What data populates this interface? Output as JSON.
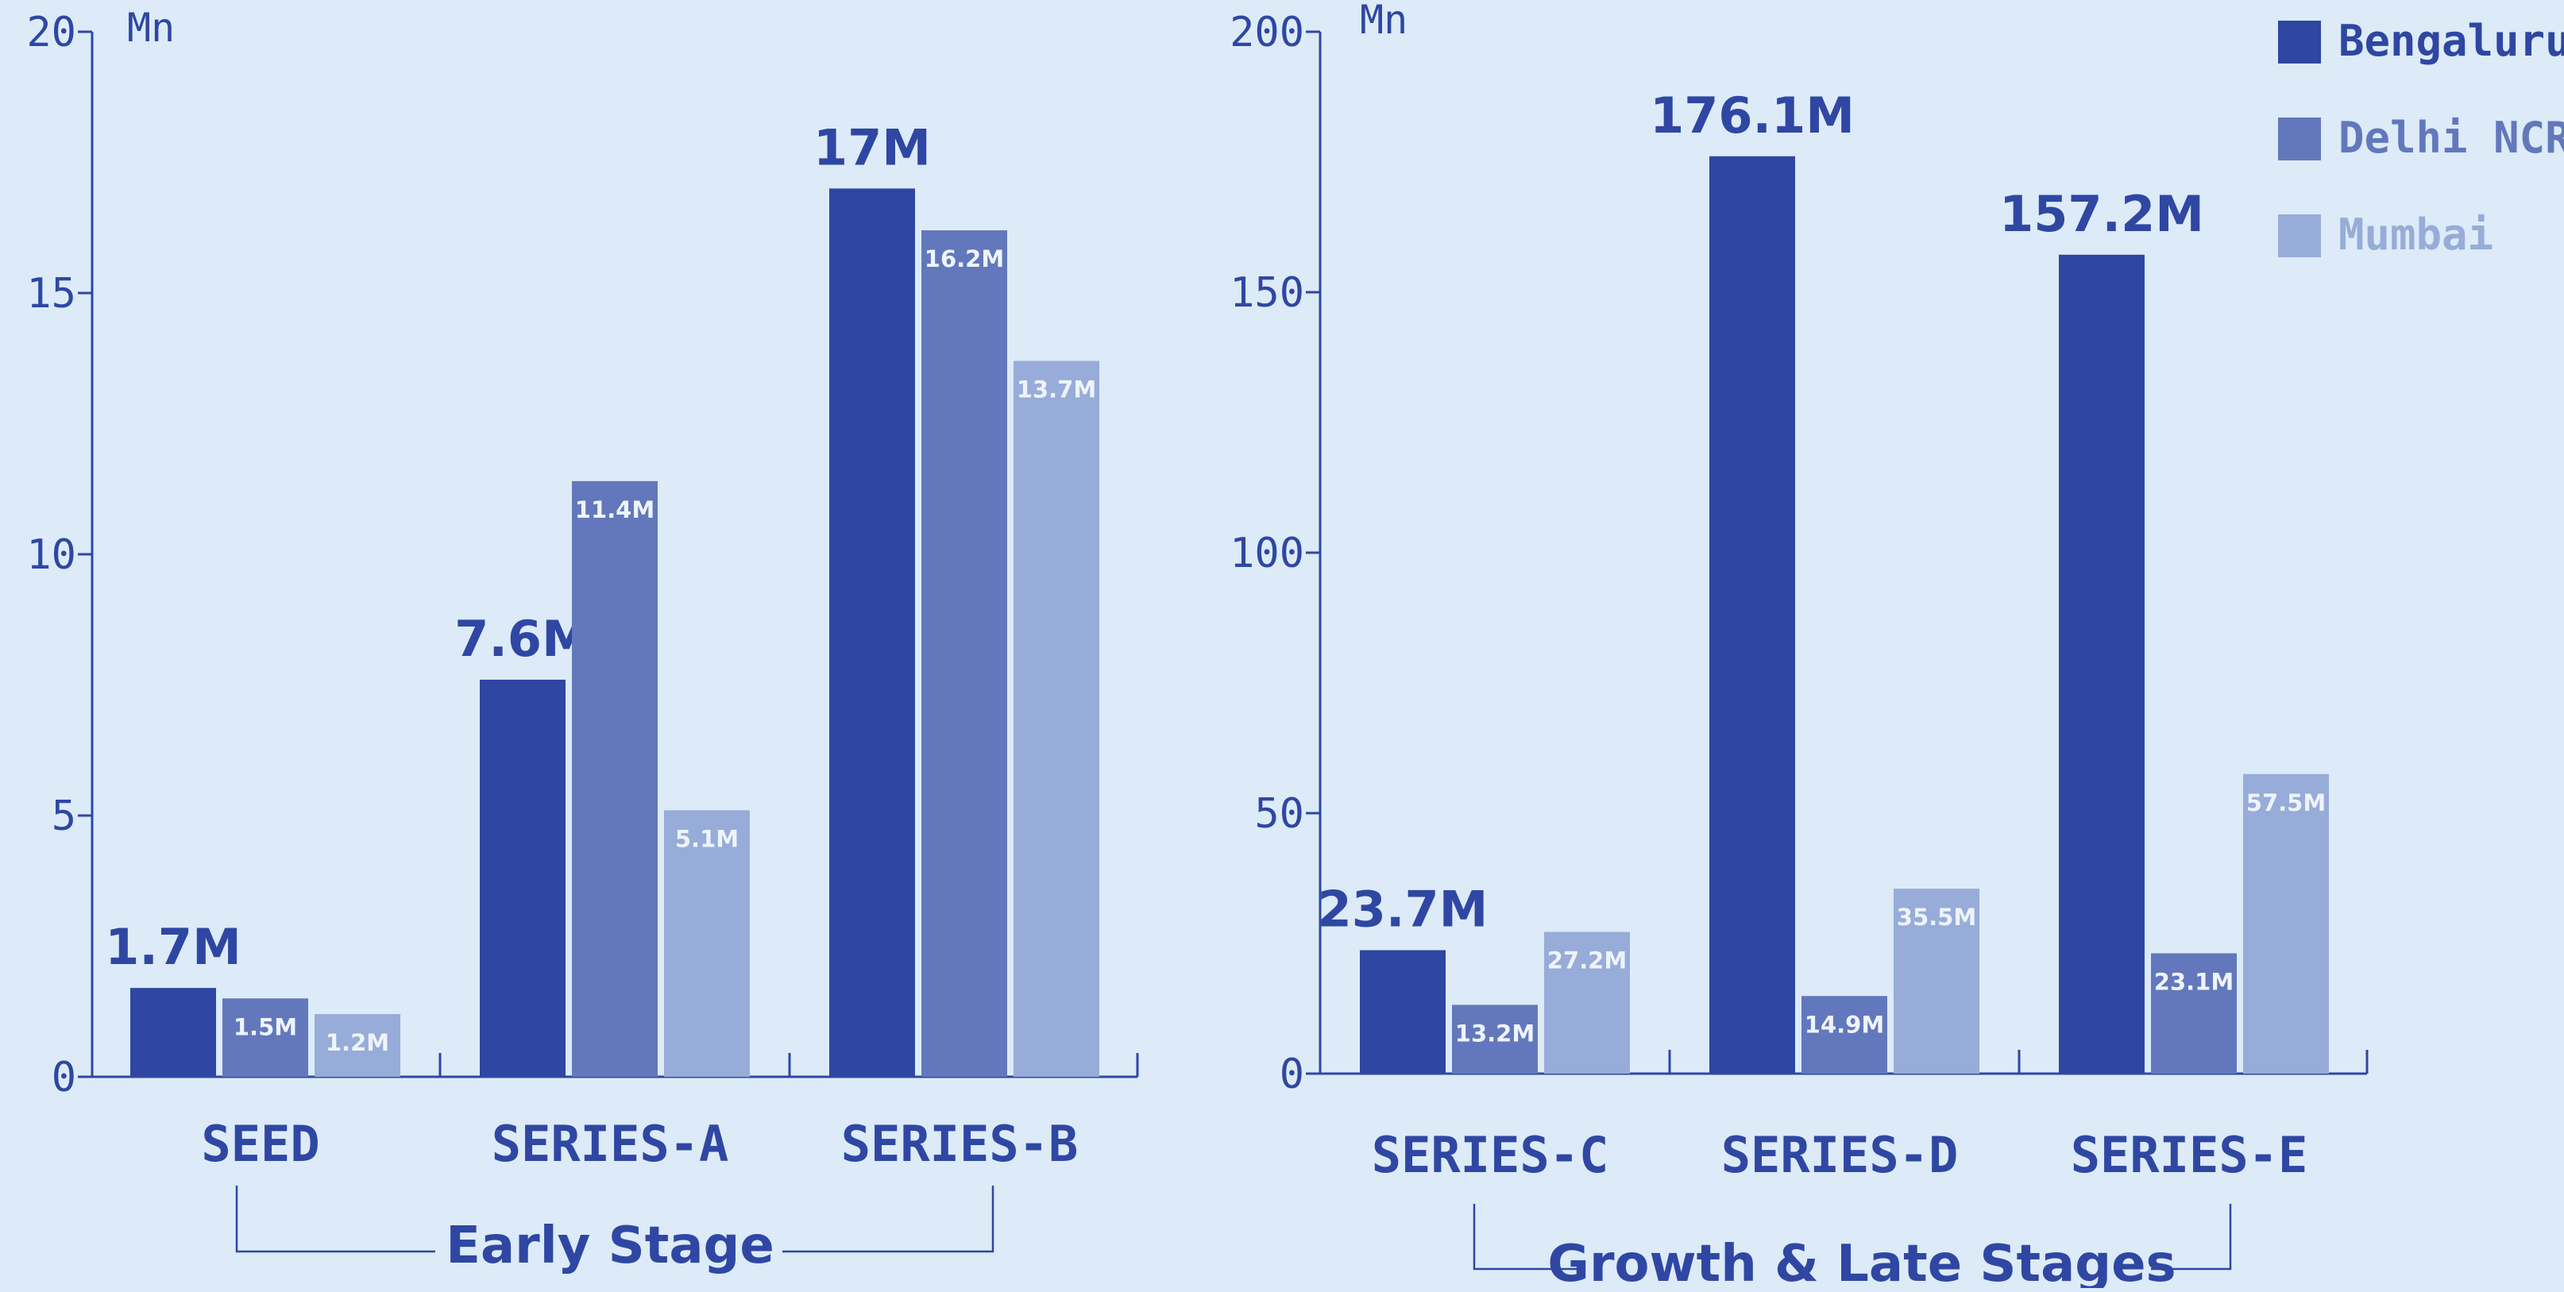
{
  "colors": {
    "background": "#dcebf7",
    "axis": "#2f47a3",
    "bar_label_inside": "#eef4fb"
  },
  "legend": [
    {
      "name": "Bengaluru",
      "color": "#2f46a2"
    },
    {
      "name": "Delhi NCR",
      "color": "#6378bc"
    },
    {
      "name": "Mumbai",
      "color": "#97acd8"
    }
  ],
  "chart_data": [
    {
      "type": "bar",
      "unit_label": "Mn",
      "yticks": [
        "0",
        "5",
        "10",
        "15",
        "20"
      ],
      "ylim": [
        0,
        20
      ],
      "categories": [
        "SEED",
        "SERIES-A",
        "SERIES-B"
      ],
      "group_label": "Early Stage",
      "series": [
        {
          "name": "Bengaluru",
          "values": [
            1.7,
            7.6,
            17
          ],
          "labels": [
            "1.7M",
            "7.6M",
            "17M"
          ]
        },
        {
          "name": "Delhi NCR",
          "values": [
            1.5,
            11.4,
            16.2
          ],
          "labels": [
            "1.5M",
            "11.4M",
            "16.2M"
          ]
        },
        {
          "name": "Mumbai",
          "values": [
            1.2,
            5.1,
            13.7
          ],
          "labels": [
            "1.2M",
            "5.1M",
            "13.7M"
          ]
        }
      ]
    },
    {
      "type": "bar",
      "unit_label": "Mn",
      "yticks": [
        "0",
        "50",
        "100",
        "150",
        "200"
      ],
      "ylim": [
        0,
        200
      ],
      "categories": [
        "SERIES-C",
        "SERIES-D",
        "SERIES-E"
      ],
      "group_label": "Growth & Late Stages",
      "series": [
        {
          "name": "Bengaluru",
          "values": [
            23.7,
            176.1,
            157.2
          ],
          "labels": [
            "23.7M",
            "176.1M",
            "157.2M"
          ]
        },
        {
          "name": "Delhi NCR",
          "values": [
            13.2,
            14.9,
            23.1
          ],
          "labels": [
            "13.2M",
            "14.9M",
            "23.1M"
          ]
        },
        {
          "name": "Mumbai",
          "values": [
            27.2,
            35.5,
            57.5
          ],
          "labels": [
            "27.2M",
            "35.5M",
            "57.5M"
          ]
        }
      ]
    }
  ]
}
